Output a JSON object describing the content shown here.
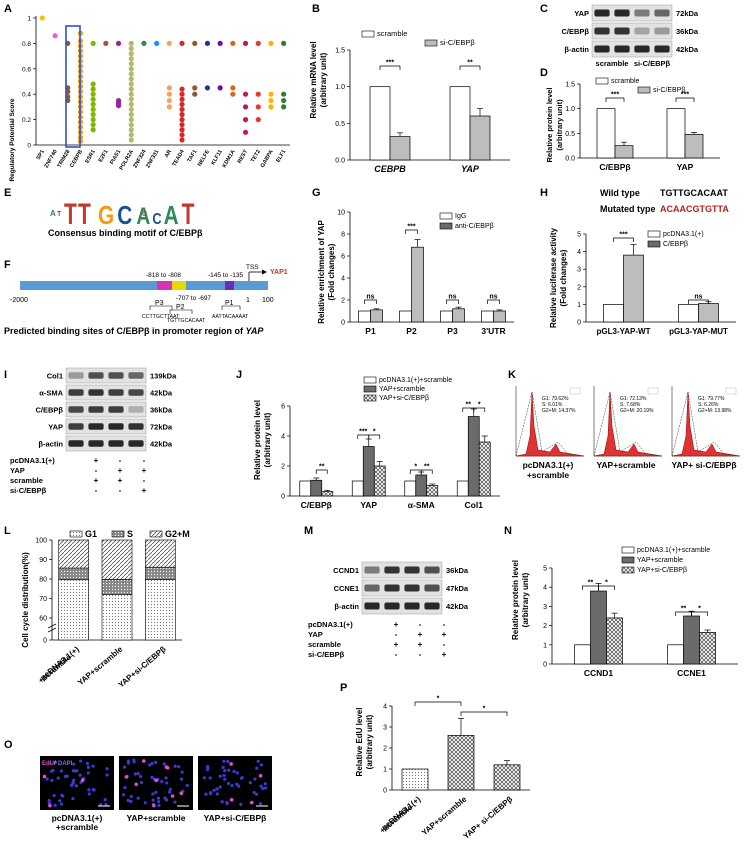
{
  "colors": {
    "bar_white": "#ffffff",
    "bar_gray": "#bdbdbd",
    "bar_dark": "#6b6b6b",
    "bar_hatch": "#9a9a9a",
    "highlight_box": "#2f55b8",
    "mutated_red": "#b22222",
    "promoter_blue": "#5b9bd5",
    "yap_red": "#c0392b"
  },
  "panels": {
    "A": {
      "letter": "A",
      "ylabel": "Regulatory Potential Score",
      "yticks": [
        "1",
        "0.8",
        "0.6",
        "0.4",
        "0.2",
        "0"
      ],
      "tfs": [
        "SP1",
        "ZNF740",
        "TRIM28",
        "CEBPB",
        "ESR1",
        "E2F1",
        "PIAS1",
        "POLR2A",
        "ZNF324",
        "ZNF331",
        "AR",
        "TEAD4",
        "TAF1",
        "NELFE",
        "KLF11",
        "KDM1A",
        "REST",
        "TET2",
        "GABPA",
        "ELF1"
      ]
    },
    "B": {
      "letter": "B",
      "ylabel_1": "Relative mRNA level",
      "ylabel_2": "(arbitrary unit)",
      "legend": [
        "scramble",
        "si-C/EBPβ"
      ],
      "yticks": [
        "1.5",
        "1.0",
        "0.5",
        "0.0"
      ],
      "categories": [
        "CEBPB",
        "YAP"
      ],
      "sig": [
        "***",
        "**"
      ]
    },
    "C": {
      "letter": "C",
      "rows": [
        {
          "label": "YAP",
          "kda": "72kDa"
        },
        {
          "label": "C/EBPβ",
          "kda": "36kDa"
        },
        {
          "label": "β-actin",
          "kda": "42kDa"
        }
      ],
      "lanes": [
        "scramble",
        "si-C/EBPβ"
      ]
    },
    "D": {
      "letter": "D",
      "ylabel_1": "Relative protein level",
      "ylabel_2": "(arbitrary unit)",
      "legend": [
        "scramble",
        "si-C/EBPβ"
      ],
      "yticks": [
        "1.5",
        "1.0",
        "0.5",
        "0.0"
      ],
      "categories": [
        "C/EBPβ",
        "YAP"
      ],
      "sig": [
        "***",
        "***"
      ]
    },
    "E": {
      "letter": "E",
      "caption": "Consensus binding motif of C/EBPβ"
    },
    "F": {
      "letter": "F",
      "caption_1": "Predicted binding sites of C/EBPβ in promoter region of ",
      "caption_2": "YAP",
      "start": "-2000",
      "end": "100",
      "tss": "TSS",
      "gene": "YAP1",
      "one": "1",
      "sites": [
        {
          "name": "P3",
          "range": "-818 to -808",
          "seq": "CCTTGCTTAAT"
        },
        {
          "name": "P2",
          "range": "-707 to -697",
          "seq": "TGTTGCACAAT"
        },
        {
          "name": "P1",
          "range": "-145 to -135",
          "seq": "AATTACAAAAT"
        }
      ]
    },
    "G": {
      "letter": "G",
      "ylabel_1": "Relative enrichment of YAP",
      "ylabel_2": "(Fold changes)",
      "legend": [
        "IgG",
        "anti-C/EBPβ"
      ],
      "yticks": [
        "10",
        "8",
        "6",
        "4",
        "2",
        "0"
      ],
      "categories": [
        "P1",
        "P2",
        "P3",
        "3'UTR"
      ],
      "sig": [
        "ns",
        "***",
        "ns",
        "ns"
      ]
    },
    "H": {
      "letter": "H",
      "wild_label": "Wild type",
      "wild_seq": "TGTTGCACAAT",
      "mut_label": "Mutated type",
      "mut_seq": "ACAACGTGTTA",
      "ylabel_1": "Relative luciferase activity",
      "ylabel_2": "(Fold changes)",
      "legend": [
        "pcDNA3.1(+)",
        "C/EBPβ"
      ],
      "yticks": [
        "5",
        "4",
        "3",
        "2",
        "1",
        "0"
      ],
      "categories": [
        "pGL3-YAP-WT",
        "pGL3-YAP-MUT"
      ],
      "sig": [
        "***",
        "ns"
      ]
    },
    "I": {
      "letter": "I",
      "rows": [
        {
          "label": "Col1",
          "kda": "139kDa"
        },
        {
          "label": "α-SMA",
          "kda": "42kDa"
        },
        {
          "label": "C/EBPβ",
          "kda": "36kDa"
        },
        {
          "label": "YAP",
          "kda": "72kDa"
        },
        {
          "label": "β-actin",
          "kda": "42kDa"
        }
      ],
      "treatments": [
        {
          "label": "pcDNA3.1(+)",
          "marks": [
            "+",
            "-",
            "-"
          ]
        },
        {
          "label": "YAP",
          "marks": [
            "-",
            "+",
            "+"
          ]
        },
        {
          "label": "scramble",
          "marks": [
            "+",
            "+",
            "-"
          ]
        },
        {
          "label": "si-C/EBPβ",
          "marks": [
            "-",
            "-",
            "+"
          ]
        }
      ]
    },
    "J": {
      "letter": "J",
      "ylabel_1": "Relative protein level",
      "ylabel_2": "(arbitrary unit)",
      "legend": [
        "pcDNA3.1(+)+scramble",
        "YAP+scramble",
        "YAP+si-C/EBPβ"
      ],
      "yticks": [
        "6",
        "4",
        "2",
        "0"
      ],
      "categories": [
        "C/EBPβ",
        "YAP",
        "α-SMA",
        "Col1"
      ],
      "sig": [
        "**",
        "***",
        "*",
        "*",
        "**",
        "**",
        "*"
      ]
    },
    "K": {
      "letter": "K",
      "plots": [
        {
          "g1": "G1: 79.62%",
          "s": "S: 6.01%",
          "g2m": "G2+M: 14.37%",
          "label_1": "pcDNA3.1(+)",
          "label_2": "+scramble"
        },
        {
          "g1": "G1: 72.13%",
          "s": "S: 7.68%",
          "g2m": "G2+M: 20.19%",
          "label_1": "YAP+scramble",
          "label_2": ""
        },
        {
          "g1": "G1: 79.77%",
          "s": "S: 6.26%",
          "g2m": "G2+M: 13.98%",
          "label_1": "YAP+ si-C/EBPβ",
          "label_2": ""
        }
      ]
    },
    "L": {
      "letter": "L",
      "ylabel": "Cell cycle distribution(%)",
      "legend": [
        "G1",
        "S",
        "G2+M"
      ],
      "yticks": [
        "100",
        "90",
        "80",
        "70",
        "60",
        "0"
      ],
      "categories": [
        "pcDNA3.1(+)\n+scramble",
        "YAP+scramble",
        "YAP+si-C/EBPβ"
      ]
    },
    "M": {
      "letter": "M",
      "rows": [
        {
          "label": "CCND1",
          "kda": "36kDa"
        },
        {
          "label": "CCNE1",
          "kda": "47kDa"
        },
        {
          "label": "β-actin",
          "kda": "42kDa"
        }
      ],
      "treatments": [
        {
          "label": "pcDNA3.1(+)",
          "marks": [
            "+",
            "-",
            "-"
          ]
        },
        {
          "label": "YAP",
          "marks": [
            "-",
            "+",
            "+"
          ]
        },
        {
          "label": "scramble",
          "marks": [
            "+",
            "+",
            "-"
          ]
        },
        {
          "label": "si-C/EBPβ",
          "marks": [
            "-",
            "-",
            "+"
          ]
        }
      ]
    },
    "N": {
      "letter": "N",
      "ylabel_1": "Relative protein level",
      "ylabel_2": "(arbitrary unit)",
      "legend": [
        "pcDNA3.1(+)+scramble",
        "YAP+scramble",
        "YAP+si-C/EBPβ"
      ],
      "yticks": [
        "5",
        "4",
        "3",
        "2",
        "1",
        "0"
      ],
      "categories": [
        "CCND1",
        "CCNE1"
      ],
      "sig": [
        "**",
        "*",
        "**",
        "*"
      ]
    },
    "O": {
      "letter": "O",
      "stain_edu": "EdU",
      "stain_dapi": "DAPI",
      "labels": [
        "pcDNA3.1(+)\n+scramble",
        "YAP+scramble",
        "YAP+si-C/EBPβ"
      ]
    },
    "P": {
      "letter": "P",
      "ylabel_1": "Relative EdU level",
      "ylabel_2": "(arbitrary unit)",
      "yticks": [
        "4",
        "3",
        "2",
        "1",
        "0"
      ],
      "categories": [
        "pcDNA3.1(+)\n+scramble",
        "YAP+scramble",
        "YAP+ si-C/EBPβ"
      ],
      "sig": [
        "*",
        "*"
      ]
    }
  },
  "chart_data": [
    {
      "id": "A",
      "type": "scatter",
      "ylabel": "Regulatory Potential Score",
      "ylim": [
        0,
        1
      ],
      "x": [
        "SP1",
        "ZNF740",
        "TRIM28",
        "CEBPB",
        "ESR1",
        "E2F1",
        "PIAS1",
        "POLR2A",
        "ZNF324",
        "ZNF331",
        "AR",
        "TEAD4",
        "TAF1",
        "NELFE",
        "KLF11",
        "KDM1A",
        "REST",
        "TET2",
        "GABPA",
        "ELF1"
      ],
      "points": [
        [
          1.0
        ],
        [
          0.86
        ],
        [
          0.8,
          0.45,
          0.42,
          0.38,
          0.35
        ],
        [
          0.88,
          0.82,
          0.78,
          0.74,
          0.7,
          0.66,
          0.62,
          0.58,
          0.54,
          0.5,
          0.46,
          0.42,
          0.38,
          0.34,
          0.3,
          0.26,
          0.22,
          0.18,
          0.14,
          0.1,
          0.06,
          0.03
        ],
        [
          0.8,
          0.48,
          0.44,
          0.4,
          0.36,
          0.32,
          0.28,
          0.24,
          0.2,
          0.16,
          0.12
        ],
        [
          0.8
        ],
        [
          0.8,
          0.35,
          0.33,
          0.31
        ],
        [
          0.8,
          0.76,
          0.72,
          0.68,
          0.64,
          0.6,
          0.56,
          0.52,
          0.48,
          0.44,
          0.4,
          0.36,
          0.32,
          0.28,
          0.24,
          0.2,
          0.16,
          0.12,
          0.08,
          0.04
        ],
        [
          0.8
        ],
        [
          0.8
        ],
        [
          0.8,
          0.45,
          0.4,
          0.35,
          0.3
        ],
        [
          0.8,
          0.44,
          0.4,
          0.36,
          0.32,
          0.28,
          0.24,
          0.2,
          0.16,
          0.12,
          0.08,
          0.04
        ],
        [
          0.8,
          0.45,
          0.4
        ],
        [
          0.8,
          0.45
        ],
        [
          0.8,
          0.45
        ],
        [
          0.8,
          0.45,
          0.4
        ],
        [
          0.8,
          0.4,
          0.3,
          0.2,
          0.1
        ],
        [
          0.8,
          0.4,
          0.3,
          0.2
        ],
        [
          0.8,
          0.4,
          0.35,
          0.3
        ],
        [
          0.8,
          0.4,
          0.35,
          0.3
        ]
      ],
      "colors": [
        "#f2c300",
        "#e060e0",
        "#8b5a2b",
        "#f39c12",
        "#7fb800",
        "#a05a2c",
        "#a020a0",
        "#b5b870",
        "#2e8b57",
        "#1e90ff",
        "#f4a261",
        "#d62828",
        "#8b5a2b",
        "#1e3a8a",
        "#6a0dad",
        "#d2691e",
        "#c2185b",
        "#e53935",
        "#ffb300",
        "#2e7d32"
      ],
      "highlight": "CEBPB"
    },
    {
      "id": "B",
      "type": "bar",
      "ylabel": "Relative mRNA level (arbitrary unit)",
      "ylim": [
        0,
        1.5
      ],
      "categories": [
        "CEBPB",
        "YAP"
      ],
      "series": [
        {
          "name": "scramble",
          "values": [
            1.0,
            1.0
          ],
          "err": [
            0,
            0
          ]
        },
        {
          "name": "si-C/EBPβ",
          "values": [
            0.32,
            0.6
          ],
          "err": [
            0.05,
            0.1
          ]
        }
      ]
    },
    {
      "id": "D",
      "type": "bar",
      "ylabel": "Relative protein level (arbitrary unit)",
      "ylim": [
        0,
        1.5
      ],
      "categories": [
        "C/EBPβ",
        "YAP"
      ],
      "series": [
        {
          "name": "scramble",
          "values": [
            1.0,
            1.0
          ],
          "err": [
            0,
            0
          ]
        },
        {
          "name": "si-C/EBPβ",
          "values": [
            0.25,
            0.48
          ],
          "err": [
            0.07,
            0.04
          ]
        }
      ]
    },
    {
      "id": "G",
      "type": "bar",
      "ylabel": "Relative enrichment of YAP (Fold changes)",
      "ylim": [
        0,
        10
      ],
      "categories": [
        "P1",
        "P2",
        "P3",
        "3'UTR"
      ],
      "series": [
        {
          "name": "IgG",
          "values": [
            1.0,
            1.0,
            1.0,
            1.0
          ],
          "err": [
            0,
            0,
            0,
            0
          ]
        },
        {
          "name": "anti-C/EBPβ",
          "values": [
            1.1,
            6.8,
            1.2,
            1.0
          ],
          "err": [
            0.1,
            0.7,
            0.15,
            0.1
          ]
        }
      ]
    },
    {
      "id": "H",
      "type": "bar",
      "ylabel": "Relative luciferase activity (Fold changes)",
      "ylim": [
        0,
        5
      ],
      "categories": [
        "pGL3-YAP-WT",
        "pGL3-YAP-MUT"
      ],
      "series": [
        {
          "name": "pcDNA3.1(+)",
          "values": [
            1.0,
            1.0
          ],
          "err": [
            0,
            0
          ]
        },
        {
          "name": "C/EBPβ",
          "values": [
            3.8,
            1.05
          ],
          "err": [
            0.6,
            0.1
          ]
        }
      ]
    },
    {
      "id": "J",
      "type": "bar",
      "ylabel": "Relative protein level (arbitrary unit)",
      "ylim": [
        0,
        6
      ],
      "categories": [
        "C/EBPβ",
        "YAP",
        "α-SMA",
        "Col1"
      ],
      "series": [
        {
          "name": "pcDNA3.1(+)+scramble",
          "values": [
            1.0,
            1.0,
            1.0,
            1.0
          ],
          "err": [
            0,
            0,
            0,
            0
          ]
        },
        {
          "name": "YAP+scramble",
          "values": [
            1.05,
            3.3,
            1.4,
            5.3
          ],
          "err": [
            0.15,
            0.5,
            0.2,
            0.5
          ]
        },
        {
          "name": "YAP+si-C/EBPβ",
          "values": [
            0.3,
            2.0,
            0.7,
            3.6
          ],
          "err": [
            0.08,
            0.3,
            0.1,
            0.4
          ]
        }
      ]
    },
    {
      "id": "L",
      "type": "bar",
      "ylabel": "Cell cycle distribution(%)",
      "ylim": [
        0,
        100
      ],
      "categories": [
        "pcDNA3.1(+) +scramble",
        "YAP+scramble",
        "YAP+si-C/EBPβ"
      ],
      "series": [
        {
          "name": "G1",
          "values": [
            79.62,
            72.13,
            79.77
          ]
        },
        {
          "name": "S",
          "values": [
            6.01,
            7.68,
            6.26
          ]
        },
        {
          "name": "G2+M",
          "values": [
            14.37,
            20.19,
            13.98
          ]
        }
      ]
    },
    {
      "id": "N",
      "type": "bar",
      "ylabel": "Relative protein level (arbitrary unit)",
      "ylim": [
        0,
        5
      ],
      "categories": [
        "CCND1",
        "CCNE1"
      ],
      "series": [
        {
          "name": "pcDNA3.1(+)+scramble",
          "values": [
            1.0,
            1.0
          ],
          "err": [
            0,
            0
          ]
        },
        {
          "name": "YAP+scramble",
          "values": [
            3.8,
            2.5
          ],
          "err": [
            0.4,
            0.25
          ]
        },
        {
          "name": "YAP+si-C/EBPβ",
          "values": [
            2.4,
            1.65
          ],
          "err": [
            0.25,
            0.12
          ]
        }
      ]
    },
    {
      "id": "P",
      "type": "bar",
      "ylabel": "Relative EdU level (arbitrary unit)",
      "ylim": [
        0,
        4
      ],
      "categories": [
        "pcDNA3.1(+) +scramble",
        "YAP+scramble",
        "YAP+ si-C/EBPβ"
      ],
      "series": [
        {
          "name": "",
          "values": [
            1.0,
            2.6,
            1.2
          ],
          "err": [
            0,
            0.8,
            0.2
          ]
        }
      ]
    }
  ]
}
